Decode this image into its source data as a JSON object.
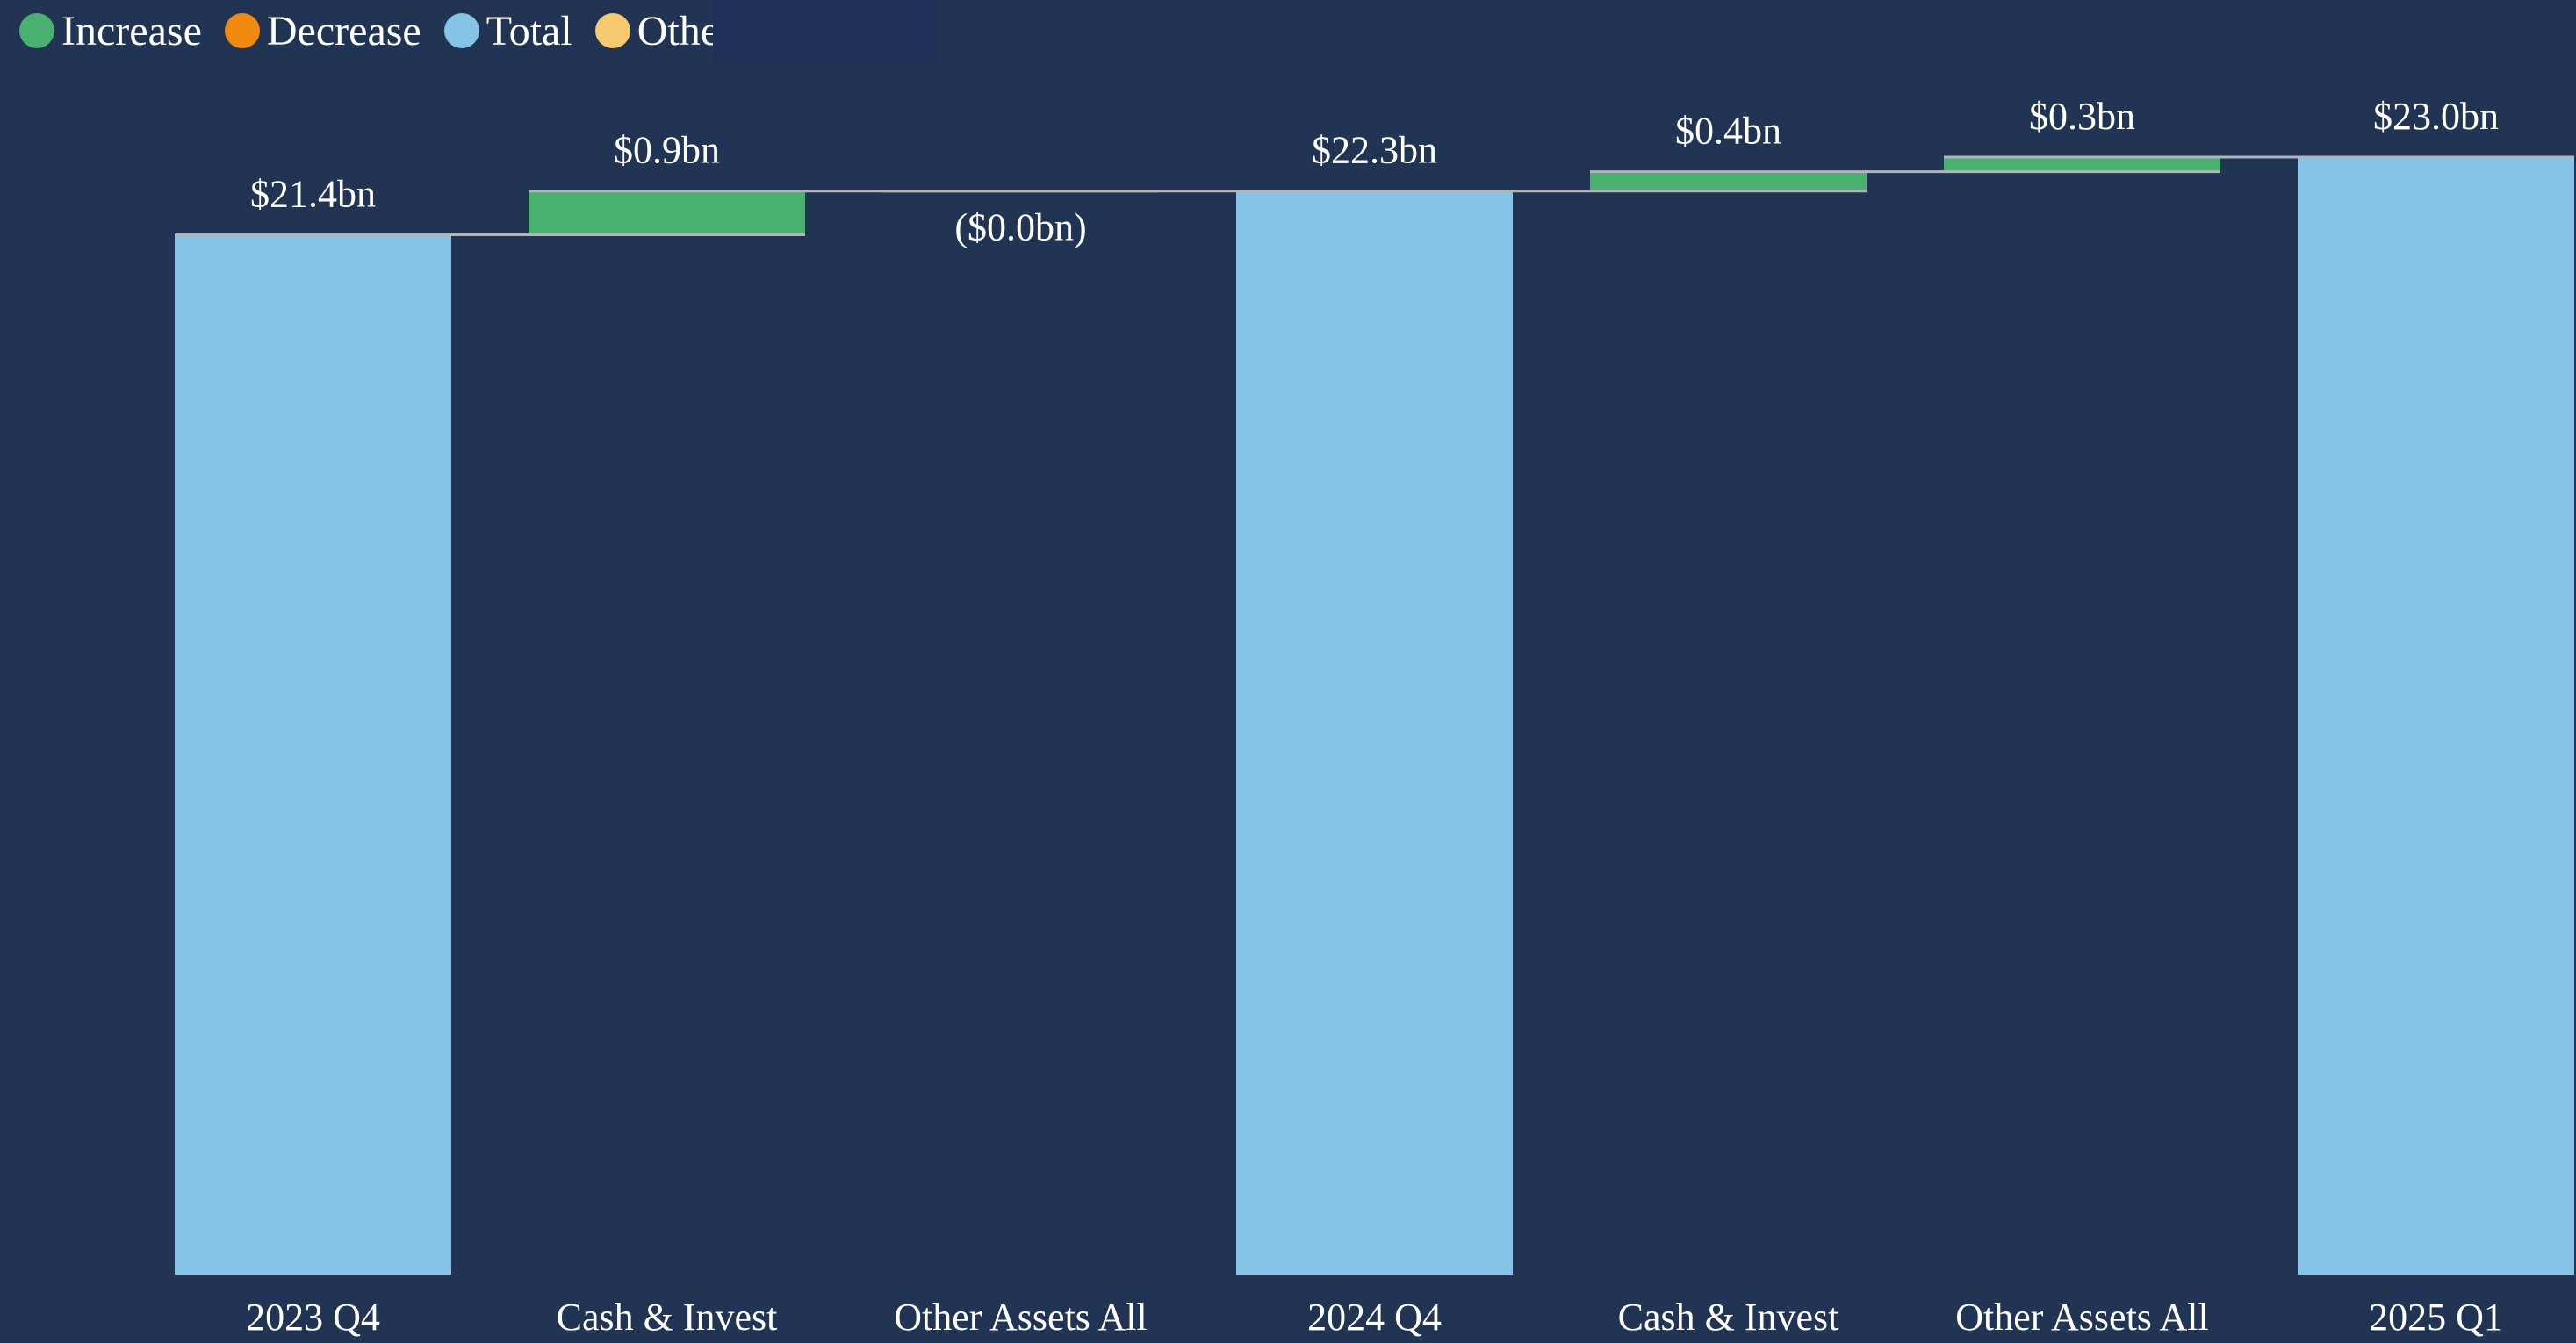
{
  "legend": {
    "items": [
      {
        "label": "Increase",
        "color": "#49b070"
      },
      {
        "label": "Decrease",
        "color": "#f28a10"
      },
      {
        "label": "Total",
        "color": "#85c4e7"
      },
      {
        "label": "Other",
        "color": "#f7ca70"
      }
    ]
  },
  "colors": {
    "background": "#213454",
    "connector": "#b0b5bd"
  },
  "chart_data": {
    "type": "bar",
    "subtype": "waterfall",
    "categories": [
      "2023 Q4",
      "Cash & Invest",
      "Other Assets All",
      "2024 Q4",
      "Cash & Invest",
      "Other Assets All",
      "2025 Q1"
    ],
    "values": [
      21.4,
      0.9,
      -0.0,
      22.3,
      0.4,
      0.3,
      23.0
    ],
    "kinds": [
      "total",
      "increase",
      "decrease",
      "total",
      "increase",
      "increase",
      "total"
    ],
    "data_labels": [
      "$21.4bn",
      "$0.9bn",
      "($0.0bn)",
      "$22.3bn",
      "$0.4bn",
      "$0.3bn",
      "$23.0bn"
    ],
    "ylim": [
      0,
      23.0
    ],
    "grid": false,
    "legend_position": "top-left"
  }
}
